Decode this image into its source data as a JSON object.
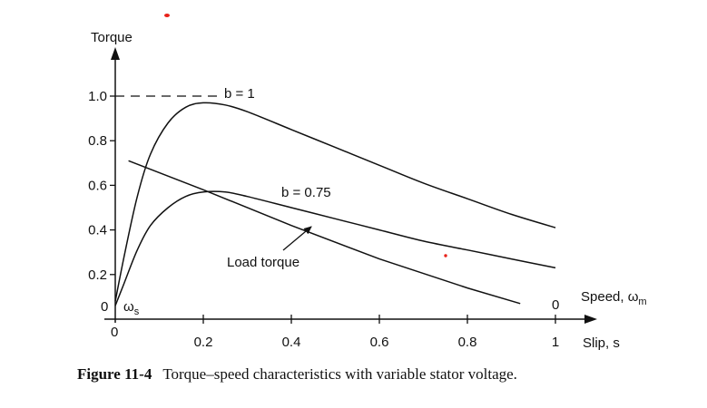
{
  "chart_data": {
    "type": "line",
    "ylabel": "Torque",
    "xlabel_speed": "Speed, ω",
    "xlabel_speed_sub": "m",
    "xlabel_slip": "Slip, s",
    "xlim": [
      0,
      1
    ],
    "ylim": [
      0,
      1.1
    ],
    "slip_ticks": [
      "0",
      "0.2",
      "0.4",
      "0.6",
      "0.8",
      "1"
    ],
    "slip_tick_values": [
      0,
      0.2,
      0.4,
      0.6,
      0.8,
      1
    ],
    "torque_ticks": [
      "0.2",
      "0.4",
      "0.6",
      "0.8",
      "1.0"
    ],
    "torque_tick_values": [
      0.2,
      0.4,
      0.6,
      0.8,
      1.0
    ],
    "origin_torque_label": "0",
    "origin_slip_label": "0",
    "speed_origin_label": "ω",
    "speed_origin_sub": "s",
    "speed_end_label": "0",
    "reference_line": {
      "y": 1.0,
      "style": "dashed"
    },
    "grid": false,
    "series": [
      {
        "name": "b = 1",
        "x": [
          0,
          0.02,
          0.05,
          0.08,
          0.12,
          0.16,
          0.2,
          0.25,
          0.3,
          0.4,
          0.5,
          0.6,
          0.7,
          0.8,
          0.9,
          1.0
        ],
        "y": [
          0.08,
          0.28,
          0.55,
          0.74,
          0.88,
          0.95,
          0.97,
          0.96,
          0.93,
          0.85,
          0.77,
          0.69,
          0.61,
          0.54,
          0.47,
          0.41
        ]
      },
      {
        "name": "b = 0.75",
        "x": [
          0,
          0.02,
          0.05,
          0.08,
          0.12,
          0.16,
          0.2,
          0.25,
          0.3,
          0.4,
          0.5,
          0.6,
          0.7,
          0.8,
          0.9,
          1.0
        ],
        "y": [
          0.06,
          0.16,
          0.31,
          0.42,
          0.5,
          0.55,
          0.57,
          0.57,
          0.55,
          0.5,
          0.45,
          0.4,
          0.35,
          0.31,
          0.27,
          0.23
        ]
      },
      {
        "name": "Load torque",
        "x": [
          0.03,
          0.2,
          0.4,
          0.6,
          0.8,
          0.92
        ],
        "y": [
          0.71,
          0.58,
          0.42,
          0.27,
          0.14,
          0.07
        ]
      }
    ]
  },
  "caption": {
    "label": "Figure 11-4",
    "text": "Torque–speed characteristics with variable stator voltage."
  }
}
